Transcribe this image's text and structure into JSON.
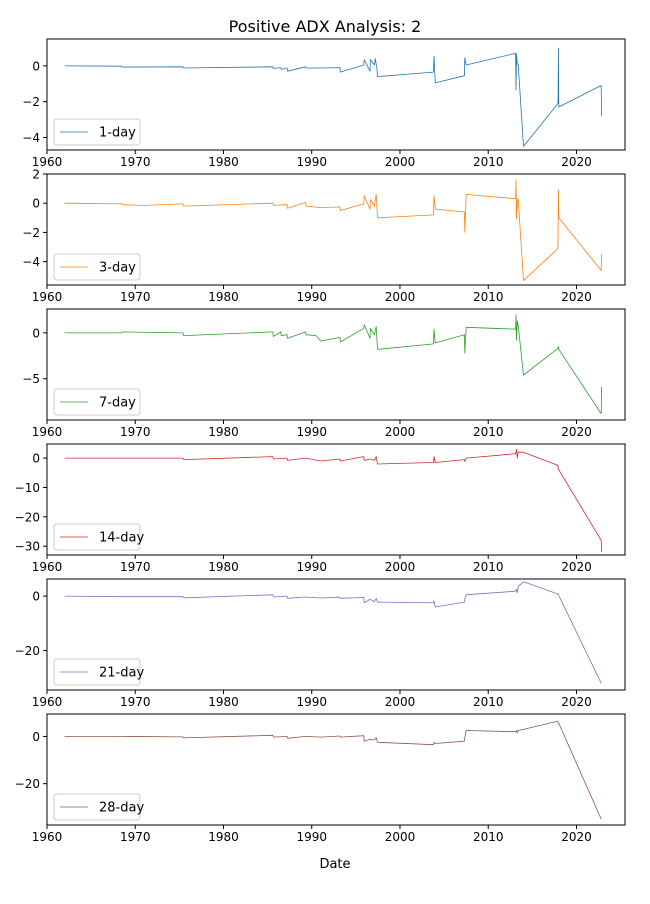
{
  "chart_data": {
    "type": "line",
    "title": "Positive ADX Analysis: 2",
    "xlabel": "Date",
    "xlim": [
      1960,
      2025.5
    ],
    "x_ticks": [
      1960,
      1970,
      1980,
      1990,
      2000,
      2010,
      2020
    ],
    "grid": false,
    "legend_position": "lower-left",
    "panels": [
      {
        "name": "1-day",
        "color": "#1f77b4",
        "ylim": [
          -4.7,
          1.5
        ],
        "y_ticks": [
          0,
          -2,
          -4
        ],
        "x": [
          1962,
          1968.5,
          1968.55,
          1975.4,
          1975.5,
          1985.6,
          1985.65,
          1986.5,
          1986.55,
          1987.2,
          1987.25,
          1989.3,
          1989.35,
          1991,
          1993.2,
          1993.25,
          1995.9,
          1995.95,
          1996.6,
          1996.65,
          1997.1,
          1997.2,
          1997.4,
          1997.45,
          2003.8,
          2003.85,
          2004,
          2007.3,
          2007.35,
          2007.5,
          2013.1,
          2013.15,
          2013.2,
          2013.3,
          2013.4,
          2014,
          2017.9,
          2017.92,
          2017.95,
          2018,
          2022.8,
          2022.85
        ],
        "y": [
          0,
          -0.02,
          -0.07,
          -0.05,
          -0.12,
          -0.05,
          -0.15,
          -0.1,
          -0.2,
          -0.12,
          -0.3,
          -0.05,
          -0.12,
          -0.12,
          -0.1,
          -0.35,
          0.05,
          0.35,
          -0.3,
          0.35,
          0.05,
          0.4,
          -0.2,
          -0.6,
          -0.35,
          0.55,
          -0.95,
          -0.55,
          0.45,
          0.05,
          0.7,
          -1.35,
          0.65,
          0.1,
          0.1,
          -4.5,
          -2.1,
          -1.9,
          1,
          -2.3,
          -1.1,
          -2.8
        ]
      },
      {
        "name": "3-day",
        "color": "#ff7f0e",
        "ylim": [
          -5.6,
          2
        ],
        "y_ticks": [
          2,
          0,
          -2,
          -4
        ],
        "x": [
          1962,
          1968.5,
          1968.55,
          1971,
          1975.4,
          1975.5,
          1985.6,
          1985.65,
          1987.2,
          1987.25,
          1989.3,
          1989.35,
          1991,
          1993.2,
          1993.25,
          1995.9,
          1995.95,
          1996.6,
          1996.65,
          1997.1,
          1997.3,
          1997.45,
          2003.8,
          2003.85,
          2004,
          2007.3,
          2007.35,
          2007.5,
          2013.1,
          2013.15,
          2013.2,
          2013.3,
          2013.4,
          2014,
          2017.9,
          2017.95,
          2018,
          2022.8,
          2022.85
        ],
        "y": [
          0,
          -0.05,
          -0.1,
          -0.15,
          -0.05,
          -0.2,
          0,
          -0.15,
          -0.1,
          -0.35,
          0.05,
          -0.2,
          -0.3,
          -0.25,
          -0.5,
          -0.05,
          0.5,
          -0.4,
          0.25,
          -0.2,
          0.6,
          -1,
          -0.8,
          0.5,
          -0.4,
          -0.6,
          -2,
          0.6,
          0.3,
          1.6,
          -1.1,
          0.2,
          0.3,
          -5.3,
          -3.1,
          0.9,
          -1,
          -4.6,
          -3.5
        ]
      },
      {
        "name": "7-day",
        "color": "#2ca02c",
        "ylim": [
          -9.5,
          2.6
        ],
        "y_ticks": [
          0,
          -5
        ],
        "x": [
          1962,
          1968.5,
          1968.55,
          1975.4,
          1975.5,
          1985.6,
          1985.65,
          1986.5,
          1986.55,
          1987.2,
          1987.25,
          1989.3,
          1989.35,
          1990.5,
          1991,
          1993.2,
          1993.25,
          1995.9,
          1995.95,
          1996.6,
          1996.65,
          1997.1,
          1997.3,
          1997.45,
          2003.8,
          2003.85,
          2004,
          2007.3,
          2007.35,
          2007.5,
          2013.1,
          2013.15,
          2013.2,
          2013.3,
          2013.4,
          2014,
          2017.9,
          2017.95,
          2018,
          2022.8,
          2022.85
        ],
        "y": [
          0,
          0,
          0.1,
          0,
          -0.3,
          0.1,
          -0.4,
          0.1,
          -0.3,
          -0.2,
          -0.6,
          0.1,
          -0.2,
          -0.3,
          -0.9,
          -0.5,
          -1,
          0.5,
          0.9,
          -0.6,
          0.5,
          -0.2,
          0.7,
          -1.8,
          -1.2,
          0.4,
          -1.1,
          -0.2,
          -2.2,
          0.6,
          0.4,
          2,
          -0.8,
          1.3,
          0.8,
          -4.6,
          -1.7,
          -1.5,
          -1.8,
          -8.8,
          -5.9
        ]
      },
      {
        "name": "14-day",
        "color": "#d62728",
        "ylim": [
          -33,
          4.8
        ],
        "y_ticks": [
          0,
          -10,
          -20,
          -30
        ],
        "x": [
          1962,
          1968.5,
          1975.4,
          1975.5,
          1985.6,
          1985.65,
          1987.2,
          1987.25,
          1989.3,
          1991,
          1993.2,
          1993.25,
          1995.9,
          1995.95,
          1996.6,
          1997.1,
          1997.3,
          1997.45,
          2003.8,
          2003.85,
          2004,
          2007.3,
          2007.35,
          2007.5,
          2013.1,
          2013.2,
          2013.3,
          2013.4,
          2014,
          2017.9,
          2017.95,
          2018,
          2022.8,
          2022.85
        ],
        "y": [
          0,
          0,
          0,
          -0.5,
          0.5,
          -0.3,
          0,
          -0.8,
          0,
          -1,
          -0.3,
          -1,
          0.5,
          -0.8,
          -0.3,
          -0.8,
          0.5,
          -2,
          -1.5,
          0.5,
          -1.5,
          -0.5,
          -1.2,
          0,
          1.5,
          3,
          0,
          2,
          2,
          -2.5,
          -4,
          -4,
          -28,
          -32
        ]
      },
      {
        "name": "21-day",
        "color": "#9467bd",
        "ylim": [
          -34.5,
          6.3
        ],
        "y_ticks": [
          0,
          -20
        ],
        "x": [
          1962,
          1968.5,
          1975.4,
          1975.5,
          1985.6,
          1985.65,
          1987.2,
          1987.25,
          1989.3,
          1991,
          1993.2,
          1993.25,
          1995.9,
          1995.95,
          1996.6,
          1997.1,
          1997.3,
          1997.45,
          2003.8,
          2003.85,
          2004,
          2007.3,
          2007.35,
          2007.5,
          2013.1,
          2013.2,
          2013.3,
          2013.4,
          2014,
          2017.9,
          2017.95,
          2018,
          2022.8
        ],
        "y": [
          0,
          -0.2,
          -0.2,
          -0.6,
          0.5,
          -0.3,
          0,
          -0.8,
          -0.3,
          -0.7,
          -0.4,
          -0.8,
          -0.5,
          -2.5,
          -1.2,
          -2,
          -0.8,
          -2.2,
          -2.5,
          -1.8,
          -4,
          -2.2,
          -1,
          0.5,
          1.8,
          2.5,
          1.2,
          3.5,
          5.3,
          0.8,
          1,
          0.2,
          -32
        ]
      },
      {
        "name": "28-day",
        "color": "#8c564b",
        "ylim": [
          -37.5,
          9.5
        ],
        "y_ticks": [
          0,
          -20
        ],
        "x": [
          1962,
          1968.5,
          1975.4,
          1975.5,
          1985.6,
          1985.65,
          1987.2,
          1987.25,
          1989.3,
          1991,
          1993.2,
          1993.25,
          1995.9,
          1995.95,
          1996.6,
          1997.1,
          1997.3,
          1997.45,
          2003.8,
          2003.85,
          2004,
          2007.3,
          2007.35,
          2007.5,
          2013.1,
          2013.2,
          2013.3,
          2013.4,
          2014,
          2017.9,
          2017.95,
          2018,
          2022.8
        ],
        "y": [
          0,
          0,
          -0.2,
          -0.6,
          0.5,
          -0.3,
          0,
          -0.8,
          0,
          -0.3,
          0.2,
          -0.3,
          0.3,
          -2,
          -1.2,
          -1.5,
          -0.5,
          -2.5,
          -3.5,
          -2.5,
          -3,
          -2,
          -0.5,
          2.5,
          2,
          2.5,
          1.5,
          2.5,
          3,
          6.5,
          5.5,
          5.5,
          -35
        ]
      }
    ]
  }
}
